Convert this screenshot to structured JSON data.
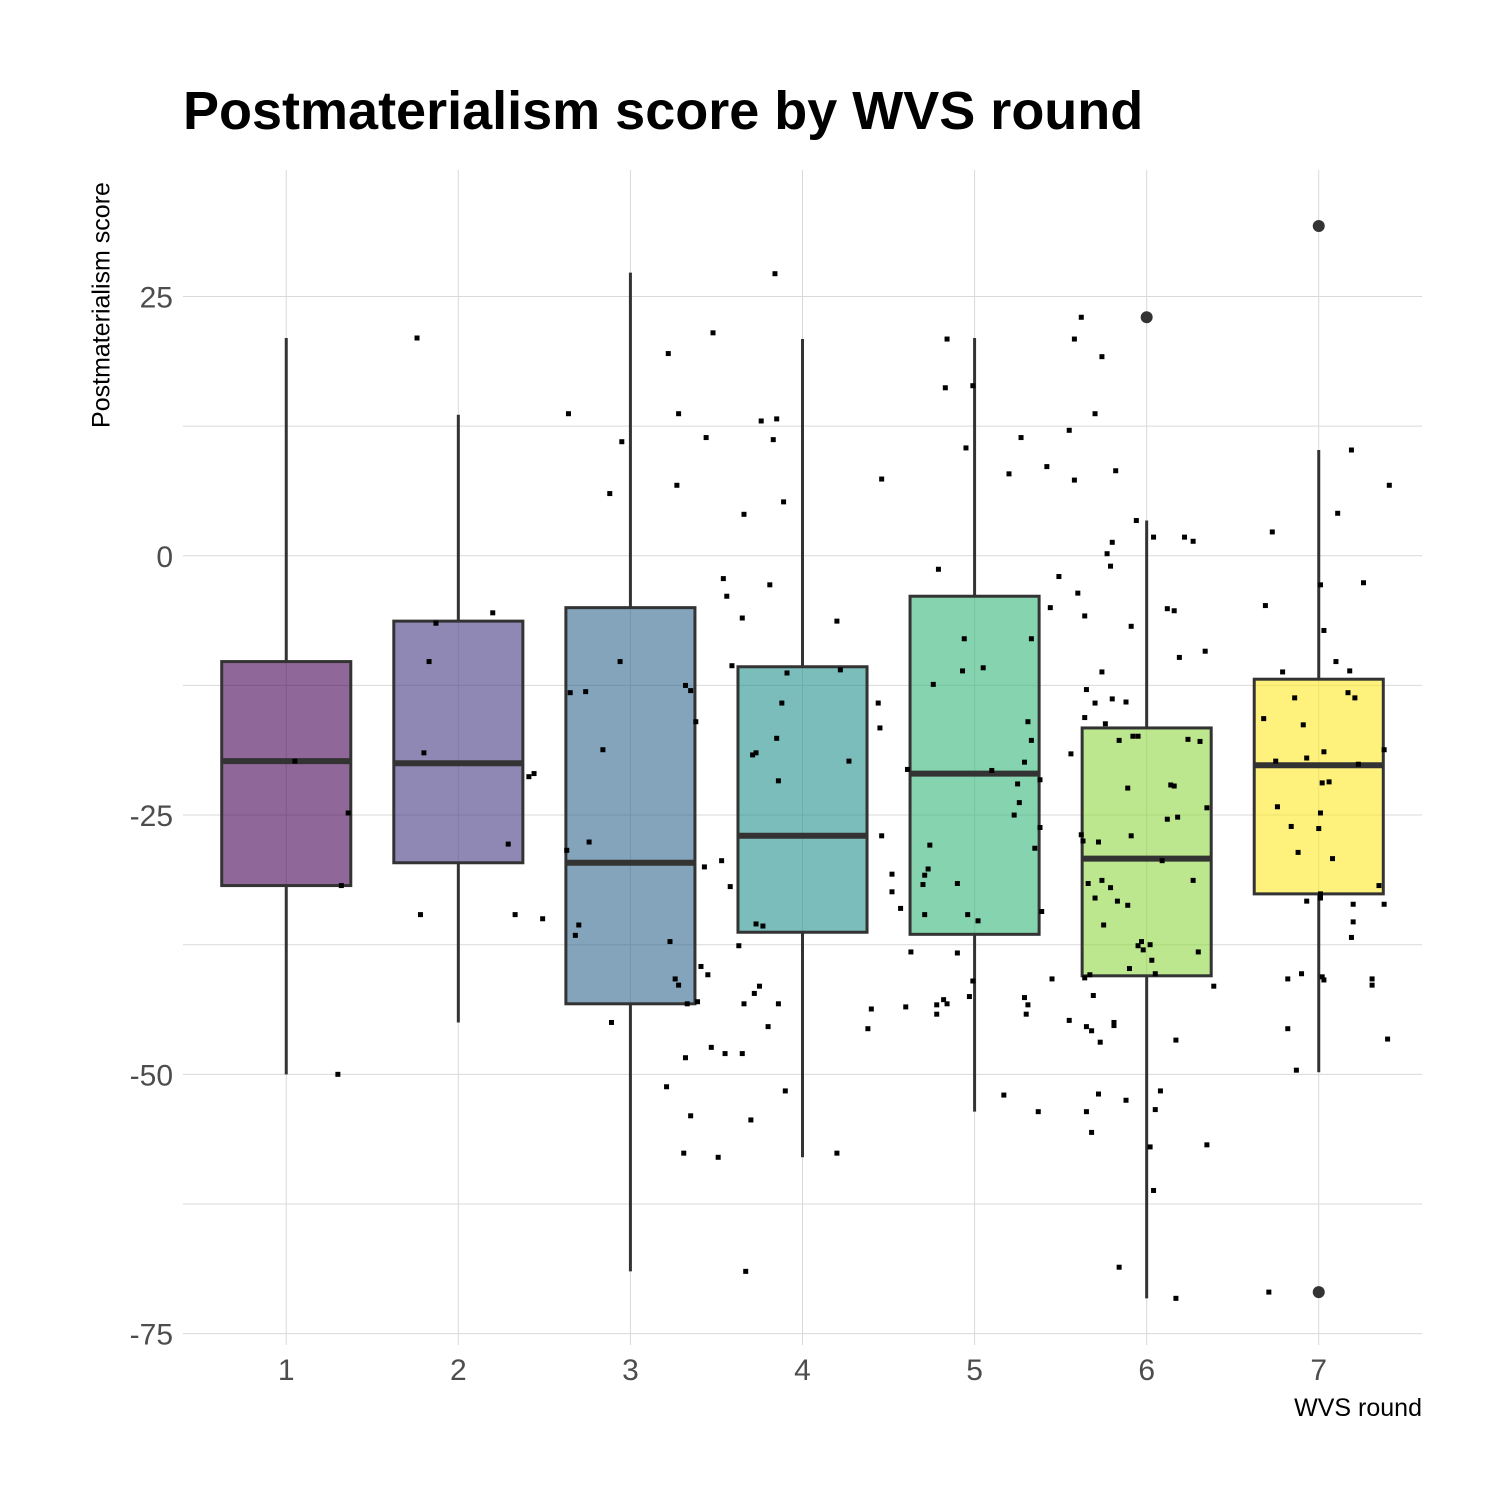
{
  "chart_data": {
    "type": "box",
    "title": "Postmaterialism score by WVS round",
    "xlabel": "WVS round",
    "ylabel": "Postmaterialism score",
    "categories": [
      "1",
      "2",
      "3",
      "4",
      "5",
      "6",
      "7"
    ],
    "ylim": [
      -76.1,
      37.2
    ],
    "yticks": [
      25,
      0,
      -25,
      -50,
      -75
    ],
    "grid": true,
    "legend": "none",
    "fills": [
      "#440154",
      "#443983",
      "#31688e",
      "#21918c",
      "#35b779",
      "#90d743",
      "#fde725"
    ],
    "boxes": [
      {
        "category": "1",
        "min": -50,
        "q1": -31.8,
        "median": -19.8,
        "q3": -10.2,
        "max": 21.0,
        "outliers": []
      },
      {
        "category": "2",
        "min": -45,
        "q1": -29.6,
        "median": -20.0,
        "q3": -6.3,
        "max": 13.6,
        "outliers": []
      },
      {
        "category": "3",
        "min": -69,
        "q1": -43.2,
        "median": -29.6,
        "q3": -5.0,
        "max": 27.3,
        "outliers": []
      },
      {
        "category": "4",
        "min": -58,
        "q1": -36.3,
        "median": -27.0,
        "q3": -10.7,
        "max": 20.9,
        "outliers": []
      },
      {
        "category": "5",
        "min": -53.6,
        "q1": -36.5,
        "median": -21.0,
        "q3": -3.9,
        "max": 21.0,
        "outliers": []
      },
      {
        "category": "6",
        "min": -71.6,
        "q1": -40.5,
        "median": -29.2,
        "q3": -16.6,
        "max": 3.4,
        "outliers": [
          23.0
        ]
      },
      {
        "category": "7",
        "min": -49.8,
        "q1": -32.6,
        "median": -20.2,
        "q3": -11.9,
        "max": 10.2,
        "outliers": [
          31.8,
          -71.0
        ]
      }
    ],
    "points": [
      {
        "x": 1.05,
        "y": -19.8
      },
      {
        "x": 1.36,
        "y": -24.8
      },
      {
        "x": 1.78,
        "y": -34.6
      },
      {
        "x": 1.83,
        "y": -10.2
      },
      {
        "x": 1.8,
        "y": -19.0
      },
      {
        "x": 1.87,
        "y": -6.5
      },
      {
        "x": 1.32,
        "y": -31.8
      },
      {
        "x": 1.76,
        "y": 21.0
      },
      {
        "x": 1.3,
        "y": -50.0
      },
      {
        "x": 2.2,
        "y": -5.5
      },
      {
        "x": 2.29,
        "y": -27.8
      },
      {
        "x": 2.41,
        "y": -21.3
      },
      {
        "x": 2.44,
        "y": -21.0
      },
      {
        "x": 2.33,
        "y": -34.6
      },
      {
        "x": 2.49,
        "y": -35.0
      },
      {
        "x": 2.65,
        "y": -13.2
      },
      {
        "x": 2.74,
        "y": -13.1
      },
      {
        "x": 2.84,
        "y": -18.7
      },
      {
        "x": 2.94,
        "y": -10.2
      },
      {
        "x": 2.88,
        "y": 6.0
      },
      {
        "x": 2.95,
        "y": 11.0
      },
      {
        "x": 2.64,
        "y": 13.7
      },
      {
        "x": 2.63,
        "y": -28.4
      },
      {
        "x": 2.68,
        "y": -36.6
      },
      {
        "x": 2.76,
        "y": -27.6
      },
      {
        "x": 2.7,
        "y": -35.6
      },
      {
        "x": 2.89,
        "y": -45.0
      },
      {
        "x": 3.22,
        "y": 19.5
      },
      {
        "x": 3.27,
        "y": 6.8
      },
      {
        "x": 3.28,
        "y": 13.7
      },
      {
        "x": 3.32,
        "y": -12.5
      },
      {
        "x": 3.35,
        "y": -13.0
      },
      {
        "x": 3.38,
        "y": -16.0
      },
      {
        "x": 3.44,
        "y": 11.4
      },
      {
        "x": 3.48,
        "y": 21.5
      },
      {
        "x": 3.54,
        "y": -2.2
      },
      {
        "x": 3.56,
        "y": -3.9
      },
      {
        "x": 3.59,
        "y": -10.6
      },
      {
        "x": 3.65,
        "y": -6.0
      },
      {
        "x": 3.66,
        "y": 4.0
      },
      {
        "x": 3.73,
        "y": -19.0
      },
      {
        "x": 3.71,
        "y": -19.2
      },
      {
        "x": 3.76,
        "y": 13.0
      },
      {
        "x": 3.83,
        "y": 11.2
      },
      {
        "x": 3.85,
        "y": 13.2
      },
      {
        "x": 3.89,
        "y": 5.2
      },
      {
        "x": 3.81,
        "y": -2.8
      },
      {
        "x": 3.85,
        "y": -17.6
      },
      {
        "x": 3.88,
        "y": -14.2
      },
      {
        "x": 3.86,
        "y": -21.7
      },
      {
        "x": 3.91,
        "y": -11.3
      },
      {
        "x": 3.84,
        "y": 27.2
      },
      {
        "x": 3.23,
        "y": -37.2
      },
      {
        "x": 3.26,
        "y": -40.8
      },
      {
        "x": 3.28,
        "y": -41.4
      },
      {
        "x": 3.33,
        "y": -43.2
      },
      {
        "x": 3.41,
        "y": -39.6
      },
      {
        "x": 3.45,
        "y": -40.4
      },
      {
        "x": 3.43,
        "y": -30.0
      },
      {
        "x": 3.53,
        "y": -29.4
      },
      {
        "x": 3.58,
        "y": -31.9
      },
      {
        "x": 3.63,
        "y": -37.6
      },
      {
        "x": 3.66,
        "y": -43.2
      },
      {
        "x": 3.73,
        "y": -35.5
      },
      {
        "x": 3.77,
        "y": -35.7
      },
      {
        "x": 3.72,
        "y": -42.2
      },
      {
        "x": 3.75,
        "y": -41.5
      },
      {
        "x": 3.86,
        "y": -43.2
      },
      {
        "x": 3.8,
        "y": -45.4
      },
      {
        "x": 3.32,
        "y": -48.4
      },
      {
        "x": 3.39,
        "y": -43.0
      },
      {
        "x": 3.47,
        "y": -47.4
      },
      {
        "x": 3.55,
        "y": -48.0
      },
      {
        "x": 3.65,
        "y": -48.0
      },
      {
        "x": 3.7,
        "y": -54.4
      },
      {
        "x": 3.9,
        "y": -51.6
      },
      {
        "x": 3.21,
        "y": -51.2
      },
      {
        "x": 3.35,
        "y": -54.0
      },
      {
        "x": 3.31,
        "y": -57.6
      },
      {
        "x": 3.51,
        "y": -58.0
      },
      {
        "x": 3.67,
        "y": -69.0
      },
      {
        "x": 4.2,
        "y": -6.3
      },
      {
        "x": 4.22,
        "y": -11.0
      },
      {
        "x": 4.27,
        "y": -19.8
      },
      {
        "x": 4.46,
        "y": 7.4
      },
      {
        "x": 4.44,
        "y": -14.2
      },
      {
        "x": 4.45,
        "y": -16.6
      },
      {
        "x": 4.46,
        "y": -27.0
      },
      {
        "x": 4.52,
        "y": -32.4
      },
      {
        "x": 4.52,
        "y": -30.7
      },
      {
        "x": 4.61,
        "y": -20.6
      },
      {
        "x": 4.57,
        "y": -34.0
      },
      {
        "x": 4.63,
        "y": -38.2
      },
      {
        "x": 4.7,
        "y": -31.7
      },
      {
        "x": 4.71,
        "y": -30.8
      },
      {
        "x": 4.71,
        "y": -34.6
      },
      {
        "x": 4.74,
        "y": -27.9
      },
      {
        "x": 4.76,
        "y": -12.4
      },
      {
        "x": 4.83,
        "y": 16.2
      },
      {
        "x": 4.79,
        "y": -1.3
      },
      {
        "x": 4.84,
        "y": 20.9
      },
      {
        "x": 4.73,
        "y": -30.2
      },
      {
        "x": 4.9,
        "y": -31.6
      },
      {
        "x": 4.93,
        "y": -11.1
      },
      {
        "x": 4.94,
        "y": -8.0
      },
      {
        "x": 4.96,
        "y": -34.6
      },
      {
        "x": 4.95,
        "y": 10.4
      },
      {
        "x": 4.99,
        "y": -41.0
      },
      {
        "x": 4.99,
        "y": 16.4
      },
      {
        "x": 5.02,
        "y": -35.2
      },
      {
        "x": 5.05,
        "y": -10.8
      },
      {
        "x": 5.1,
        "y": -20.7
      },
      {
        "x": 4.82,
        "y": -42.8
      },
      {
        "x": 4.78,
        "y": -44.2
      },
      {
        "x": 4.84,
        "y": -43.2
      },
      {
        "x": 4.9,
        "y": -38.3
      },
      {
        "x": 4.78,
        "y": -43.3
      },
      {
        "x": 4.6,
        "y": -43.5
      },
      {
        "x": 4.4,
        "y": -43.7
      },
      {
        "x": 4.38,
        "y": -45.6
      },
      {
        "x": 4.2,
        "y": -57.6
      },
      {
        "x": 4.97,
        "y": -42.5
      },
      {
        "x": 5.2,
        "y": 7.9
      },
      {
        "x": 5.27,
        "y": 11.4
      },
      {
        "x": 5.23,
        "y": -25.0
      },
      {
        "x": 5.25,
        "y": -22.0
      },
      {
        "x": 5.26,
        "y": -23.8
      },
      {
        "x": 5.29,
        "y": -19.9
      },
      {
        "x": 5.31,
        "y": -16.0
      },
      {
        "x": 5.33,
        "y": -17.8
      },
      {
        "x": 5.33,
        "y": -8.0
      },
      {
        "x": 5.35,
        "y": -28.2
      },
      {
        "x": 5.38,
        "y": -26.2
      },
      {
        "x": 5.39,
        "y": -34.3
      },
      {
        "x": 5.38,
        "y": -21.6
      },
      {
        "x": 5.42,
        "y": 8.6
      },
      {
        "x": 5.44,
        "y": -5.0
      },
      {
        "x": 5.49,
        "y": -2.0
      },
      {
        "x": 5.55,
        "y": 12.1
      },
      {
        "x": 5.56,
        "y": -19.1
      },
      {
        "x": 5.58,
        "y": 7.3
      },
      {
        "x": 5.58,
        "y": 20.9
      },
      {
        "x": 5.6,
        "y": -3.6
      },
      {
        "x": 5.62,
        "y": -26.9
      },
      {
        "x": 5.63,
        "y": -27.5
      },
      {
        "x": 5.65,
        "y": -12.9
      },
      {
        "x": 5.66,
        "y": -31.6
      },
      {
        "x": 5.7,
        "y": -14.2
      },
      {
        "x": 5.74,
        "y": -11.2
      },
      {
        "x": 5.64,
        "y": -5.8
      },
      {
        "x": 5.7,
        "y": 13.7
      },
      {
        "x": 5.74,
        "y": 19.2
      },
      {
        "x": 5.75,
        "y": -35.6
      },
      {
        "x": 5.82,
        "y": 8.2
      },
      {
        "x": 5.84,
        "y": -17.8
      },
      {
        "x": 5.77,
        "y": 0.2
      },
      {
        "x": 5.8,
        "y": 1.3
      },
      {
        "x": 5.79,
        "y": -1.0
      },
      {
        "x": 5.92,
        "y": -17.4
      },
      {
        "x": 5.89,
        "y": -33.7
      },
      {
        "x": 5.9,
        "y": -39.8
      },
      {
        "x": 5.95,
        "y": -37.6
      },
      {
        "x": 5.81,
        "y": -45.3
      },
      {
        "x": 5.81,
        "y": -45.0
      },
      {
        "x": 5.73,
        "y": -46.9
      },
      {
        "x": 5.64,
        "y": -40.7
      },
      {
        "x": 5.55,
        "y": -44.8
      },
      {
        "x": 5.45,
        "y": -40.8
      },
      {
        "x": 5.31,
        "y": -43.3
      },
      {
        "x": 5.29,
        "y": -42.6
      },
      {
        "x": 5.17,
        "y": -52.0
      },
      {
        "x": 5.37,
        "y": -53.6
      },
      {
        "x": 5.65,
        "y": -53.6
      },
      {
        "x": 5.72,
        "y": -51.9
      },
      {
        "x": 5.3,
        "y": -44.2
      },
      {
        "x": 5.62,
        "y": 23.0
      },
      {
        "x": 5.64,
        "y": -15.6
      },
      {
        "x": 5.67,
        "y": -40.4
      },
      {
        "x": 5.65,
        "y": -45.4
      },
      {
        "x": 5.69,
        "y": -42.4
      },
      {
        "x": 5.7,
        "y": -33.0
      },
      {
        "x": 5.72,
        "y": -27.6
      },
      {
        "x": 5.74,
        "y": -31.3
      },
      {
        "x": 5.76,
        "y": -16.2
      },
      {
        "x": 5.79,
        "y": -32.0
      },
      {
        "x": 5.8,
        "y": -13.8
      },
      {
        "x": 5.83,
        "y": -33.3
      },
      {
        "x": 5.88,
        "y": -14.1
      },
      {
        "x": 5.89,
        "y": -22.4
      },
      {
        "x": 5.91,
        "y": -6.8
      },
      {
        "x": 5.91,
        "y": -27.0
      },
      {
        "x": 5.94,
        "y": 3.4
      },
      {
        "x": 5.95,
        "y": -17.4
      },
      {
        "x": 5.97,
        "y": -37.2
      },
      {
        "x": 5.98,
        "y": -38.0
      },
      {
        "x": 6.02,
        "y": -37.5
      },
      {
        "x": 6.03,
        "y": -39.0
      },
      {
        "x": 6.04,
        "y": 1.8
      },
      {
        "x": 6.05,
        "y": -40.3
      },
      {
        "x": 6.09,
        "y": -29.4
      },
      {
        "x": 6.12,
        "y": -25.4
      },
      {
        "x": 6.12,
        "y": -5.1
      },
      {
        "x": 6.16,
        "y": -5.3
      },
      {
        "x": 6.14,
        "y": -22.1
      },
      {
        "x": 6.16,
        "y": -22.2
      },
      {
        "x": 6.18,
        "y": -25.2
      },
      {
        "x": 6.19,
        "y": -9.8
      },
      {
        "x": 6.22,
        "y": 1.8
      },
      {
        "x": 6.24,
        "y": -17.7
      },
      {
        "x": 6.27,
        "y": 1.4
      },
      {
        "x": 6.27,
        "y": -31.3
      },
      {
        "x": 6.3,
        "y": -38.2
      },
      {
        "x": 6.31,
        "y": -17.9
      },
      {
        "x": 6.34,
        "y": -9.2
      },
      {
        "x": 6.35,
        "y": -24.3
      },
      {
        "x": 6.39,
        "y": -41.5
      },
      {
        "x": 6.35,
        "y": -56.8
      },
      {
        "x": 6.17,
        "y": -46.7
      },
      {
        "x": 6.08,
        "y": -51.6
      },
      {
        "x": 6.05,
        "y": -53.4
      },
      {
        "x": 6.02,
        "y": -57.0
      },
      {
        "x": 6.04,
        "y": -61.2
      },
      {
        "x": 5.88,
        "y": -52.5
      },
      {
        "x": 5.84,
        "y": -68.6
      },
      {
        "x": 6.17,
        "y": -71.6
      },
      {
        "x": 5.68,
        "y": -55.6
      },
      {
        "x": 5.68,
        "y": -45.8
      },
      {
        "x": 6.68,
        "y": -15.7
      },
      {
        "x": 6.69,
        "y": -4.8
      },
      {
        "x": 6.75,
        "y": -19.8
      },
      {
        "x": 6.76,
        "y": -24.2
      },
      {
        "x": 6.73,
        "y": 2.3
      },
      {
        "x": 6.79,
        "y": -11.2
      },
      {
        "x": 6.84,
        "y": -26.1
      },
      {
        "x": 6.86,
        "y": -13.7
      },
      {
        "x": 6.88,
        "y": -28.6
      },
      {
        "x": 6.91,
        "y": -16.3
      },
      {
        "x": 6.9,
        "y": -40.3
      },
      {
        "x": 6.93,
        "y": -19.5
      },
      {
        "x": 6.93,
        "y": -33.3
      },
      {
        "x": 7.01,
        "y": -2.8
      },
      {
        "x": 7.01,
        "y": -24.8
      },
      {
        "x": 7.02,
        "y": -21.9
      },
      {
        "x": 7.03,
        "y": -18.9
      },
      {
        "x": 7.06,
        "y": -21.8
      },
      {
        "x": 7.08,
        "y": -29.2
      },
      {
        "x": 7.1,
        "y": -10.2
      },
      {
        "x": 7.03,
        "y": -7.2
      },
      {
        "x": 7.0,
        "y": -26.3
      },
      {
        "x": 7.01,
        "y": -32.6
      },
      {
        "x": 7.01,
        "y": -33.0
      },
      {
        "x": 7.02,
        "y": -40.6
      },
      {
        "x": 7.03,
        "y": -40.9
      },
      {
        "x": 7.11,
        "y": 4.1
      },
      {
        "x": 7.17,
        "y": -13.2
      },
      {
        "x": 7.18,
        "y": -11.1
      },
      {
        "x": 7.21,
        "y": -13.7
      },
      {
        "x": 7.2,
        "y": -33.6
      },
      {
        "x": 7.2,
        "y": -35.3
      },
      {
        "x": 7.23,
        "y": -20.1
      },
      {
        "x": 7.26,
        "y": -2.6
      },
      {
        "x": 7.19,
        "y": -36.8
      },
      {
        "x": 7.19,
        "y": 10.2
      },
      {
        "x": 7.31,
        "y": -41.4
      },
      {
        "x": 7.35,
        "y": -31.8
      },
      {
        "x": 7.38,
        "y": -33.6
      },
      {
        "x": 7.38,
        "y": -18.7
      },
      {
        "x": 7.41,
        "y": 6.8
      },
      {
        "x": 7.4,
        "y": -46.6
      },
      {
        "x": 6.87,
        "y": -49.6
      },
      {
        "x": 6.82,
        "y": -45.6
      },
      {
        "x": 6.82,
        "y": -40.8
      },
      {
        "x": 6.71,
        "y": -71.0
      },
      {
        "x": 7.31,
        "y": -40.8
      }
    ]
  }
}
